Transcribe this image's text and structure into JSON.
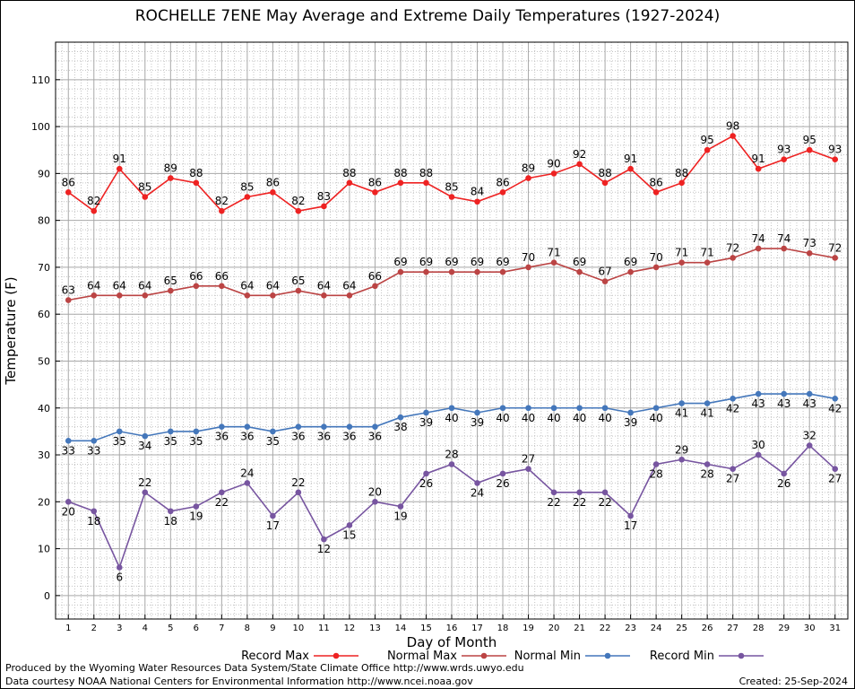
{
  "title": "ROCHELLE 7ENE May Average and Extreme Daily Temperatures (1927-2024)",
  "footer": {
    "credit1": "Produced by the Wyoming Water Resources Data System/State Climate Office http://www.wrds.uwyo.edu",
    "credit2": "Data courtesy NOAA National Centers for Environmental Information http://www.ncei.noaa.gov",
    "created": "Created: 25-Sep-2024"
  },
  "chart_data": {
    "type": "line",
    "xlabel": "Day of Month",
    "ylabel": "Temperature (F)",
    "x": [
      1,
      2,
      3,
      4,
      5,
      6,
      7,
      8,
      9,
      10,
      11,
      12,
      13,
      14,
      15,
      16,
      17,
      18,
      19,
      20,
      21,
      22,
      23,
      24,
      25,
      26,
      27,
      28,
      29,
      30,
      31
    ],
    "xlim": [
      0.5,
      31.5
    ],
    "ylim": [
      -5,
      118
    ],
    "yticks": [
      0,
      10,
      20,
      30,
      40,
      50,
      60,
      70,
      80,
      90,
      100,
      110
    ],
    "grid": true,
    "legend_position": "bottom",
    "series": [
      {
        "name": "Record Max",
        "color": "#ee2222",
        "values": [
          86,
          82,
          91,
          85,
          89,
          88,
          82,
          85,
          86,
          82,
          83,
          88,
          86,
          88,
          88,
          85,
          84,
          86,
          89,
          90,
          92,
          88,
          91,
          86,
          88,
          95,
          98,
          91,
          93,
          95,
          93
        ]
      },
      {
        "name": "Normal Max",
        "color": "#bb4444",
        "values": [
          63,
          64,
          64,
          64,
          65,
          66,
          66,
          64,
          64,
          65,
          64,
          64,
          66,
          69,
          69,
          69,
          69,
          69,
          70,
          71,
          69,
          67,
          69,
          70,
          71,
          71,
          72,
          74,
          74,
          73,
          72
        ]
      },
      {
        "name": "Normal Min",
        "color": "#4477bb",
        "values": [
          33,
          33,
          35,
          34,
          35,
          35,
          36,
          36,
          35,
          36,
          36,
          36,
          36,
          38,
          39,
          40,
          39,
          40,
          40,
          40,
          40,
          40,
          39,
          40,
          41,
          41,
          42,
          43,
          43,
          43,
          42
        ]
      },
      {
        "name": "Record Min",
        "color": "#7755a0",
        "values": [
          20,
          18,
          6,
          22,
          18,
          19,
          22,
          24,
          17,
          22,
          12,
          15,
          20,
          19,
          26,
          28,
          24,
          26,
          27,
          22,
          22,
          22,
          17,
          28,
          29,
          28,
          27,
          30,
          26,
          32,
          27
        ]
      }
    ]
  }
}
